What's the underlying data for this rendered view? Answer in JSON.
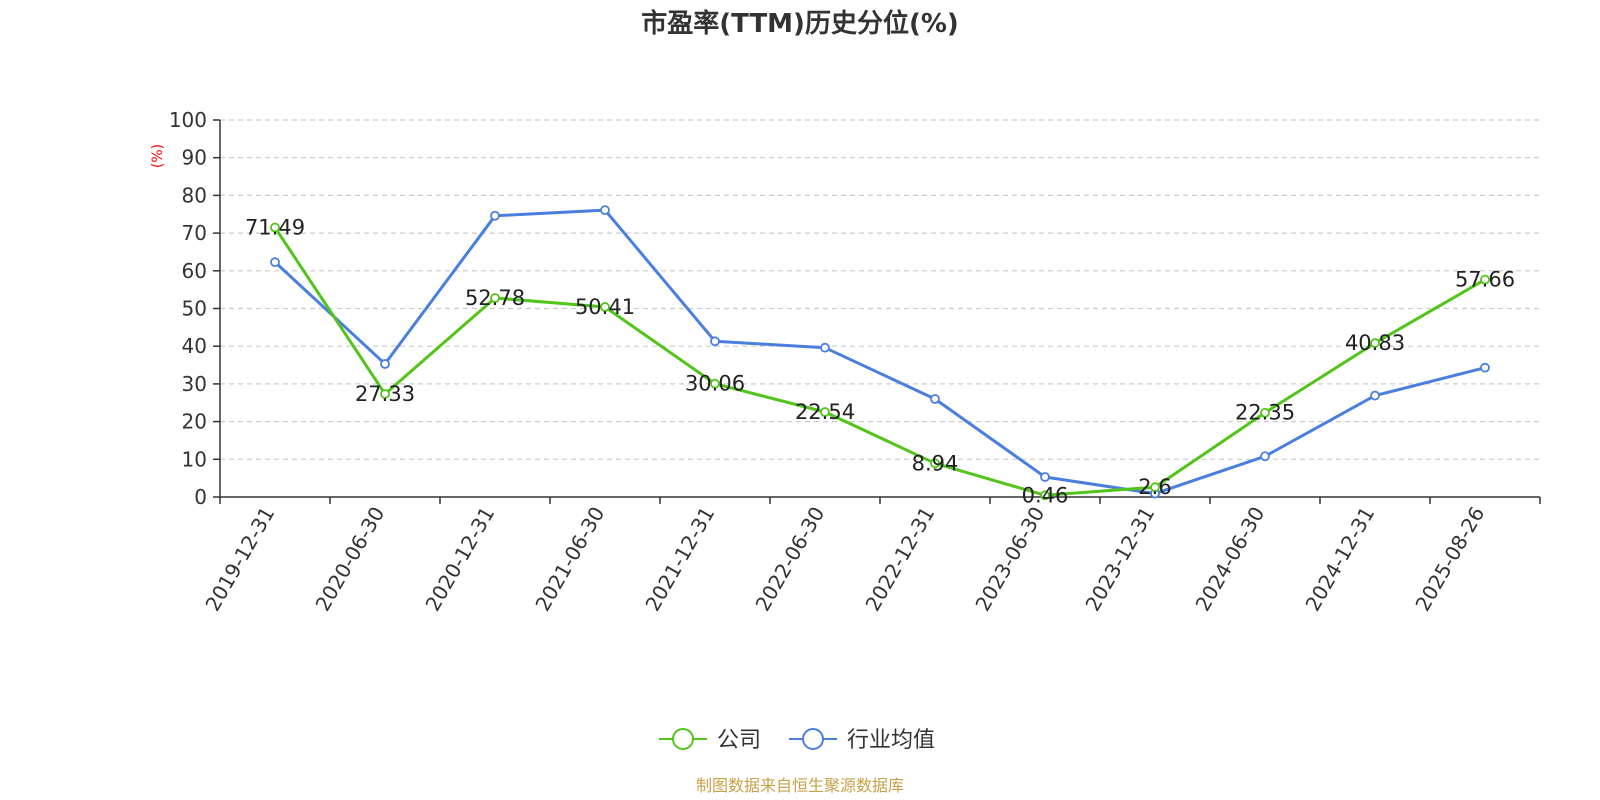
{
  "chart_data": {
    "type": "line",
    "title": "市盈率(TTM)历史分位(%)",
    "ylabel": "(%)",
    "xlabel": "",
    "ylim": [
      0,
      100
    ],
    "yticks": [
      0,
      10,
      20,
      30,
      40,
      50,
      60,
      70,
      80,
      90,
      100
    ],
    "grid": true,
    "legend_position": "bottom-center",
    "categories": [
      "2019-12-31",
      "2020-06-30",
      "2020-12-31",
      "2021-06-30",
      "2021-12-31",
      "2022-06-30",
      "2022-12-31",
      "2023-06-30",
      "2023-12-31",
      "2024-06-30",
      "2024-12-31",
      "2025-08-26"
    ],
    "series": [
      {
        "name": "公司",
        "color": "#52c41a",
        "values": [
          71.49,
          27.33,
          52.78,
          50.41,
          30.06,
          22.54,
          8.94,
          0.46,
          2.6,
          22.35,
          40.83,
          57.66
        ],
        "labels": [
          "71.49",
          "27.33",
          "52.78",
          "50.41",
          "30.06",
          "22.54",
          "8.94",
          "0.46",
          "2.6",
          "22.35",
          "40.83",
          "57.66"
        ]
      },
      {
        "name": "行业均值",
        "color": "#4a7fde",
        "values": [
          62.3,
          35.3,
          74.6,
          76.1,
          41.3,
          39.6,
          26.0,
          5.3,
          0.9,
          10.8,
          26.9,
          34.3
        ]
      }
    ],
    "unit_color": "#ff0000"
  },
  "source": {
    "text": "制图数据来自恒生聚源数据库",
    "color": "#c8a24a"
  }
}
